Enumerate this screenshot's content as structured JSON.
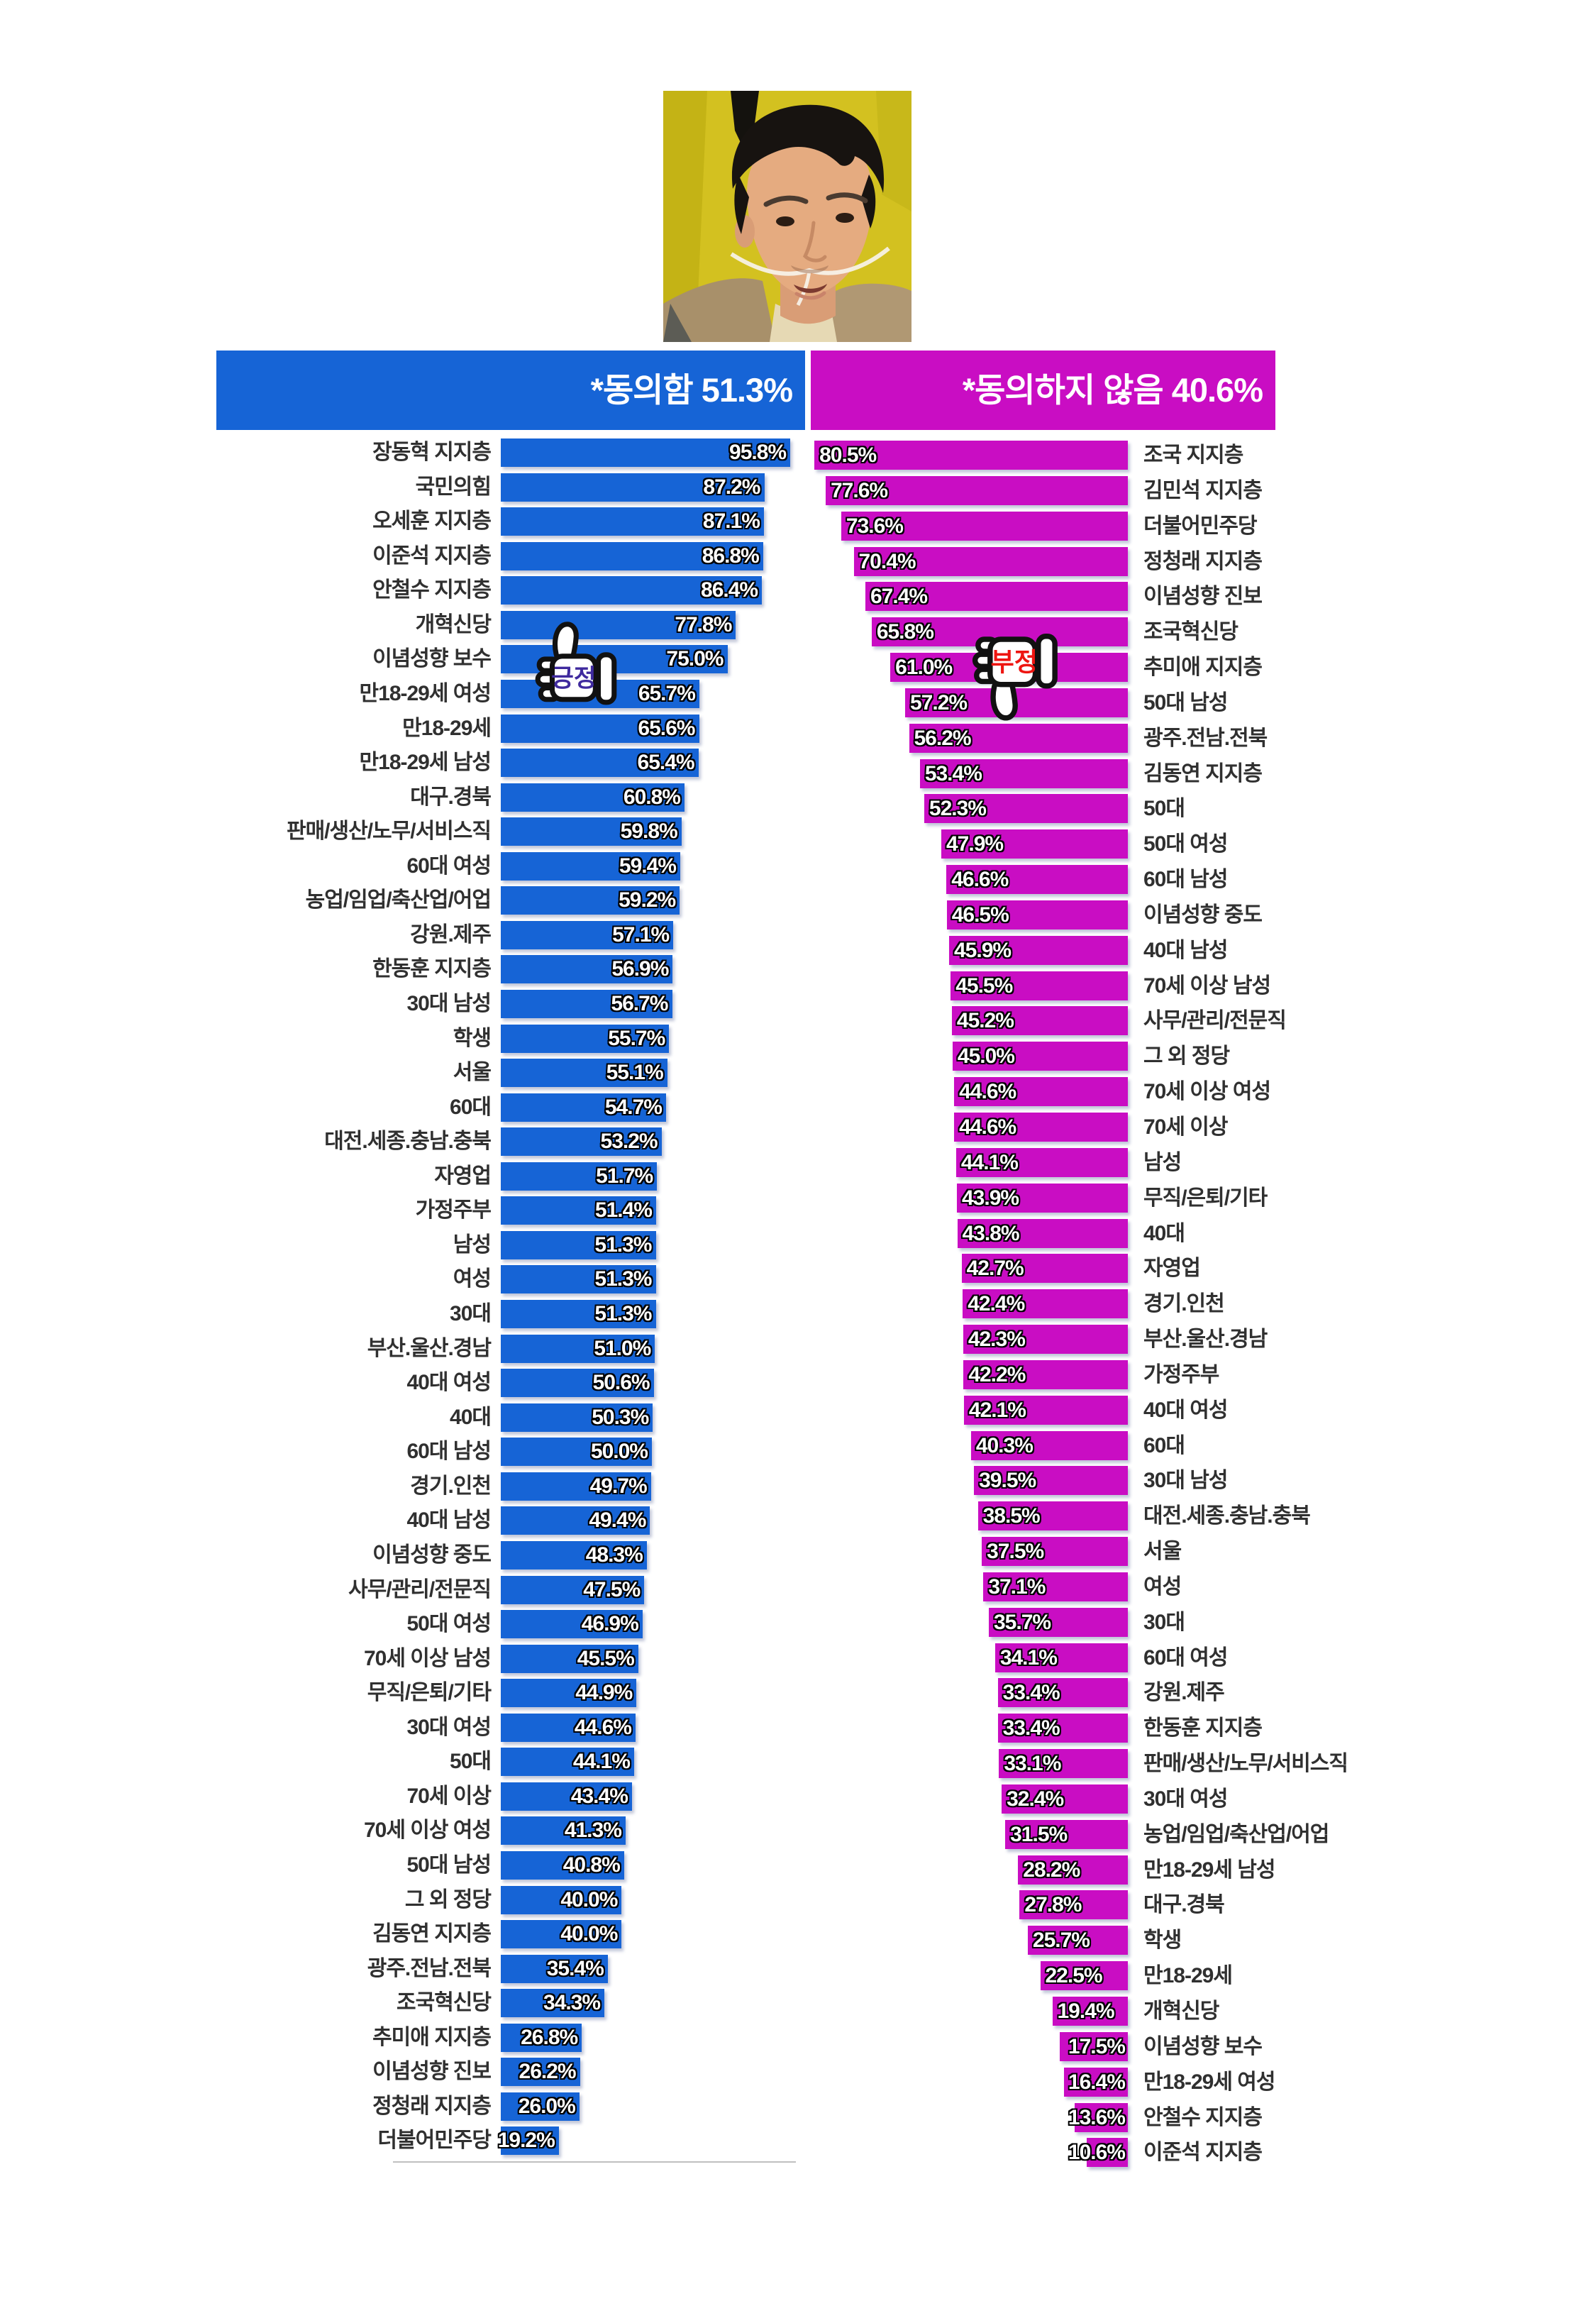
{
  "header": {
    "left_label": "*동의함 51.3%",
    "right_label": "*동의하지 않음 40.6%"
  },
  "annotations": {
    "positive": "긍정",
    "negative": "부정"
  },
  "colors": {
    "agree_bar": "#1664d6",
    "disagree_bar": "#c90dc3",
    "positive_text": "#3f2a9e",
    "negative_text": "#ee1511",
    "photo_background": "#d3c120",
    "header_text": "#ffffff",
    "category_label": "#303030",
    "baseline": "#c0c0c0"
  },
  "icons": {
    "thumbs_up": "thumbs-up-icon",
    "thumbs_down": "thumbs-down-icon",
    "photo": "man-with-nasal-cannula-photo"
  },
  "chart_data": {
    "type": "bar",
    "orientation": "horizontal, two mirrored columns (agree left / disagree right)",
    "legend_position": "top headers",
    "grid": false,
    "xlim_left": [
      0,
      100
    ],
    "xlim_right": [
      0,
      85
    ],
    "left": {
      "title": "*동의함 51.3%",
      "value_total": 51.3,
      "color": "#1664d6",
      "categories": [
        "장동혁 지지층",
        "국민의힘",
        "오세훈 지지층",
        "이준석 지지층",
        "안철수 지지층",
        "개혁신당",
        "이념성향 보수",
        "만18-29세 여성",
        "만18-29세",
        "만18-29세 남성",
        "대구.경북",
        "판매/생산/노무/서비스직",
        "60대 여성",
        "농업/임업/축산업/어업",
        "강원.제주",
        "한동훈 지지층",
        "30대 남성",
        "학생",
        "서울",
        "60대",
        "대전.세종.충남.충북",
        "자영업",
        "가정주부",
        "남성",
        "여성",
        "30대",
        "부산.울산.경남",
        "40대 여성",
        "40대",
        "60대 남성",
        "경기.인천",
        "40대 남성",
        "이념성향 중도",
        "사무/관리/전문직",
        "50대 여성",
        "70세 이상 남성",
        "무직/은퇴/기타",
        "30대 여성",
        "50대",
        "70세 이상",
        "70세 이상 여성",
        "50대 남성",
        "그 외 정당",
        "김동연 지지층",
        "광주.전남.전북",
        "조국혁신당",
        "추미애 지지층",
        "이념성향 진보",
        "정청래 지지층",
        "더불어민주당"
      ],
      "values": [
        95.8,
        87.2,
        87.1,
        86.8,
        86.4,
        77.8,
        75.0,
        65.7,
        65.6,
        65.4,
        60.8,
        59.8,
        59.4,
        59.2,
        57.1,
        56.9,
        56.7,
        55.7,
        55.1,
        54.7,
        53.2,
        51.7,
        51.4,
        51.3,
        51.3,
        51.3,
        51.0,
        50.6,
        50.3,
        50.0,
        49.7,
        49.4,
        48.3,
        47.5,
        46.9,
        45.5,
        44.9,
        44.6,
        44.1,
        43.4,
        41.3,
        40.8,
        40.0,
        40.0,
        35.4,
        34.3,
        26.8,
        26.2,
        26.0,
        19.2
      ]
    },
    "right": {
      "title": "*동의하지 않음 40.6%",
      "value_total": 40.6,
      "color": "#c90dc3",
      "categories": [
        "조국 지지층",
        "김민석 지지층",
        "더불어민주당",
        "정청래 지지층",
        "이념성향 진보",
        "조국혁신당",
        "추미애 지지층",
        "50대 남성",
        "광주.전남.전북",
        "김동연 지지층",
        "50대",
        "50대 여성",
        "60대 남성",
        "이념성향 중도",
        "40대 남성",
        "70세 이상 남성",
        "사무/관리/전문직",
        "그 외 정당",
        "70세 이상 여성",
        "70세 이상",
        "남성",
        "무직/은퇴/기타",
        "40대",
        "자영업",
        "경기.인천",
        "부산.울산.경남",
        "가정주부",
        "40대 여성",
        "60대",
        "30대 남성",
        "대전.세종.충남.충북",
        "서울",
        "여성",
        "30대",
        "60대 여성",
        "강원.제주",
        "한동훈 지지층",
        "판매/생산/노무/서비스직",
        "30대 여성",
        "농업/임업/축산업/어업",
        "만18-29세 남성",
        "대구.경북",
        "학생",
        "만18-29세",
        "개혁신당",
        "이념성향 보수",
        "만18-29세 여성",
        "안철수 지지층",
        "이준석 지지층"
      ],
      "values": [
        80.5,
        77.6,
        73.6,
        70.4,
        67.4,
        65.8,
        61.0,
        57.2,
        56.2,
        53.4,
        52.3,
        47.9,
        46.6,
        46.5,
        45.9,
        45.5,
        45.2,
        45.0,
        44.6,
        44.6,
        44.1,
        43.9,
        43.8,
        42.7,
        42.4,
        42.3,
        42.2,
        42.1,
        40.3,
        39.5,
        38.5,
        37.5,
        37.1,
        35.7,
        34.1,
        33.4,
        33.4,
        33.1,
        32.4,
        31.5,
        28.2,
        27.8,
        25.7,
        22.5,
        19.4,
        17.5,
        16.4,
        13.6,
        10.6
      ]
    }
  }
}
